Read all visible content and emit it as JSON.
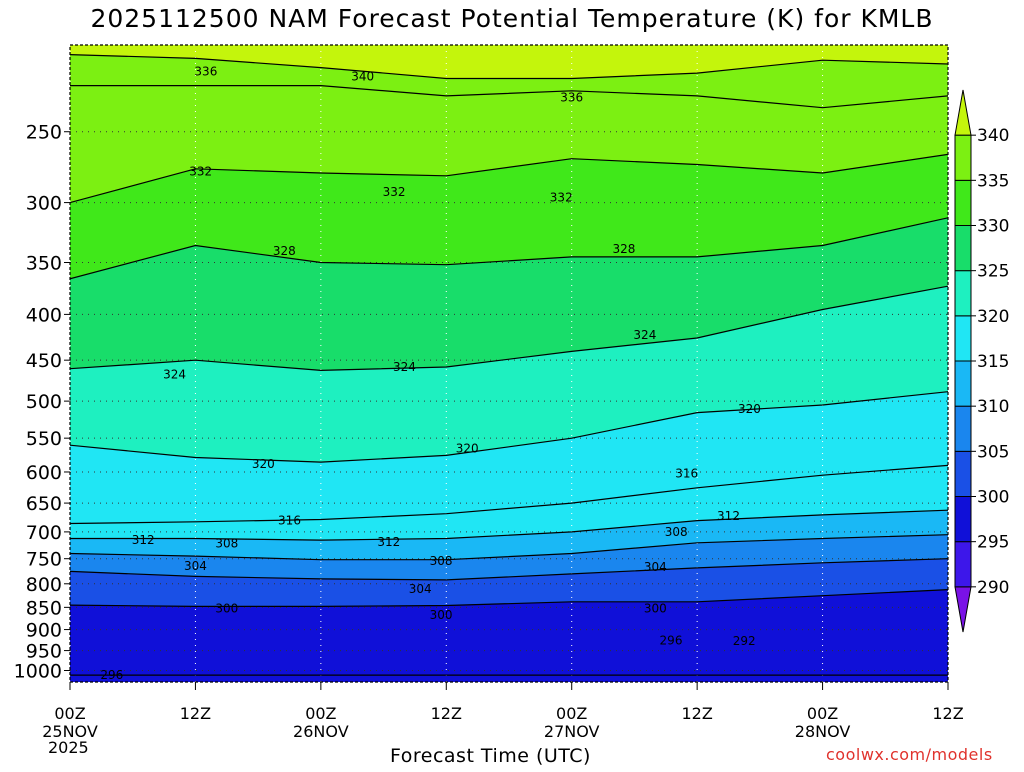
{
  "title": "2025112500 NAM Forecast Potential Temperature (K) for KMLB",
  "credit": "coolwx.com/models",
  "chart_data": {
    "type": "heatmap",
    "title": "2025112500 NAM Forecast Potential Temperature (K) for KMLB",
    "xlabel": "Forecast Time (UTC)",
    "ylabel": "",
    "variable": "Potential Temperature (K)",
    "x_ticks": [
      {
        "hour": 0,
        "label": "00Z",
        "date": "25NOV"
      },
      {
        "hour": 12,
        "label": "12Z",
        "date": ""
      },
      {
        "hour": 24,
        "label": "00Z",
        "date": "26NOV"
      },
      {
        "hour": 36,
        "label": "12Z",
        "date": ""
      },
      {
        "hour": 48,
        "label": "00Z",
        "date": "27NOV"
      },
      {
        "hour": 60,
        "label": "12Z",
        "date": ""
      },
      {
        "hour": 72,
        "label": "00Z",
        "date": "28NOV"
      },
      {
        "hour": 84,
        "label": "12Z",
        "date": ""
      }
    ],
    "year_label": "2025",
    "xlim": [
      0,
      84
    ],
    "y_ticks": [
      250,
      300,
      350,
      400,
      450,
      500,
      550,
      600,
      650,
      700,
      750,
      800,
      850,
      900,
      950,
      1000
    ],
    "ylim": [
      1030,
      200
    ],
    "y_scale": "log",
    "grid": "dotted",
    "colorbar": {
      "levels": [
        290,
        295,
        300,
        305,
        310,
        315,
        320,
        325,
        330,
        335,
        340
      ],
      "colors": [
        "#7a12e6",
        "#3d17ea",
        "#1010d8",
        "#1a50e6",
        "#1a86ee",
        "#1ab8f5",
        "#20e6f4",
        "#1ef0c0",
        "#18dd6a",
        "#40e81a",
        "#7cf012",
        "#c4f50c"
      ]
    },
    "contours": [
      {
        "level": 296,
        "points": [
          [
            0,
            1012
          ],
          [
            84,
            1012
          ]
        ]
      },
      {
        "level": 300,
        "points": [
          [
            0,
            845
          ],
          [
            12,
            848
          ],
          [
            24,
            848
          ],
          [
            36,
            846
          ],
          [
            48,
            838
          ],
          [
            60,
            838
          ],
          [
            72,
            825
          ],
          [
            84,
            812
          ]
        ]
      },
      {
        "level": 304,
        "points": [
          [
            0,
            775
          ],
          [
            12,
            785
          ],
          [
            24,
            790
          ],
          [
            36,
            792
          ],
          [
            48,
            780
          ],
          [
            60,
            768
          ],
          [
            72,
            758
          ],
          [
            84,
            750
          ]
        ]
      },
      {
        "level": 308,
        "points": [
          [
            0,
            740
          ],
          [
            12,
            745
          ],
          [
            24,
            752
          ],
          [
            36,
            752
          ],
          [
            48,
            740
          ],
          [
            60,
            720
          ],
          [
            72,
            712
          ],
          [
            84,
            705
          ]
        ]
      },
      {
        "level": 312,
        "points": [
          [
            0,
            712
          ],
          [
            12,
            712
          ],
          [
            24,
            715
          ],
          [
            36,
            712
          ],
          [
            48,
            700
          ],
          [
            60,
            680
          ],
          [
            72,
            670
          ],
          [
            84,
            662
          ]
        ]
      },
      {
        "level": 316,
        "points": [
          [
            0,
            685
          ],
          [
            12,
            682
          ],
          [
            24,
            678
          ],
          [
            36,
            668
          ],
          [
            48,
            650
          ],
          [
            60,
            625
          ],
          [
            72,
            605
          ],
          [
            84,
            590
          ]
        ]
      },
      {
        "level": 320,
        "points": [
          [
            0,
            560
          ],
          [
            12,
            578
          ],
          [
            24,
            585
          ],
          [
            36,
            575
          ],
          [
            48,
            550
          ],
          [
            60,
            515
          ],
          [
            72,
            505
          ],
          [
            84,
            488
          ]
        ]
      },
      {
        "level": 324,
        "points": [
          [
            0,
            460
          ],
          [
            12,
            450
          ],
          [
            24,
            462
          ],
          [
            36,
            458
          ],
          [
            48,
            440
          ],
          [
            60,
            425
          ],
          [
            72,
            395
          ],
          [
            84,
            372
          ]
        ]
      },
      {
        "level": 328,
        "points": [
          [
            0,
            365
          ],
          [
            12,
            335
          ],
          [
            24,
            350
          ],
          [
            36,
            352
          ],
          [
            48,
            345
          ],
          [
            60,
            345
          ],
          [
            72,
            335
          ],
          [
            84,
            312
          ]
        ]
      },
      {
        "level": 332,
        "points": [
          [
            0,
            300
          ],
          [
            12,
            275
          ],
          [
            24,
            278
          ],
          [
            36,
            280
          ],
          [
            48,
            268
          ],
          [
            60,
            272
          ],
          [
            72,
            278
          ],
          [
            84,
            265
          ]
        ]
      },
      {
        "level": 336,
        "points": [
          [
            0,
            222
          ],
          [
            12,
            222
          ],
          [
            24,
            222
          ],
          [
            36,
            228
          ],
          [
            48,
            225
          ],
          [
            60,
            228
          ],
          [
            72,
            235
          ],
          [
            84,
            228
          ]
        ]
      },
      {
        "level": 340,
        "points": [
          [
            0,
            205
          ],
          [
            12,
            207
          ],
          [
            24,
            212
          ],
          [
            36,
            218
          ],
          [
            48,
            218
          ],
          [
            60,
            215
          ],
          [
            72,
            208
          ],
          [
            84,
            210
          ]
        ]
      }
    ],
    "contour_labels": [
      {
        "text": "336",
        "hour": 13,
        "p": 214
      },
      {
        "text": "340",
        "hour": 28,
        "p": 217
      },
      {
        "text": "336",
        "hour": 48,
        "p": 229
      },
      {
        "text": "332",
        "hour": 12.5,
        "p": 277
      },
      {
        "text": "332",
        "hour": 31,
        "p": 292
      },
      {
        "text": "332",
        "hour": 47,
        "p": 296
      },
      {
        "text": "328",
        "hour": 20.5,
        "p": 340
      },
      {
        "text": "328",
        "hour": 53,
        "p": 338
      },
      {
        "text": "324",
        "hour": 10,
        "p": 467
      },
      {
        "text": "324",
        "hour": 32,
        "p": 458
      },
      {
        "text": "324",
        "hour": 55,
        "p": 422
      },
      {
        "text": "320",
        "hour": 18.5,
        "p": 588
      },
      {
        "text": "320",
        "hour": 38,
        "p": 565
      },
      {
        "text": "320",
        "hour": 65,
        "p": 510
      },
      {
        "text": "316",
        "hour": 21,
        "p": 680
      },
      {
        "text": "316",
        "hour": 59,
        "p": 602
      },
      {
        "text": "312",
        "hour": 7,
        "p": 715
      },
      {
        "text": "312",
        "hour": 30.5,
        "p": 718
      },
      {
        "text": "312",
        "hour": 63,
        "p": 672
      },
      {
        "text": "308",
        "hour": 15,
        "p": 721
      },
      {
        "text": "308",
        "hour": 35.5,
        "p": 754
      },
      {
        "text": "308",
        "hour": 58,
        "p": 700
      },
      {
        "text": "304",
        "hour": 12,
        "p": 764
      },
      {
        "text": "304",
        "hour": 33.5,
        "p": 811
      },
      {
        "text": "304",
        "hour": 56,
        "p": 766
      },
      {
        "text": "300",
        "hour": 15,
        "p": 853
      },
      {
        "text": "300",
        "hour": 35.5,
        "p": 867
      },
      {
        "text": "300",
        "hour": 56,
        "p": 853
      },
      {
        "text": "296",
        "hour": 57.5,
        "p": 926
      },
      {
        "text": "292",
        "hour": 64.5,
        "p": 927
      },
      {
        "text": "296",
        "hour": 4,
        "p": 1012
      }
    ]
  }
}
